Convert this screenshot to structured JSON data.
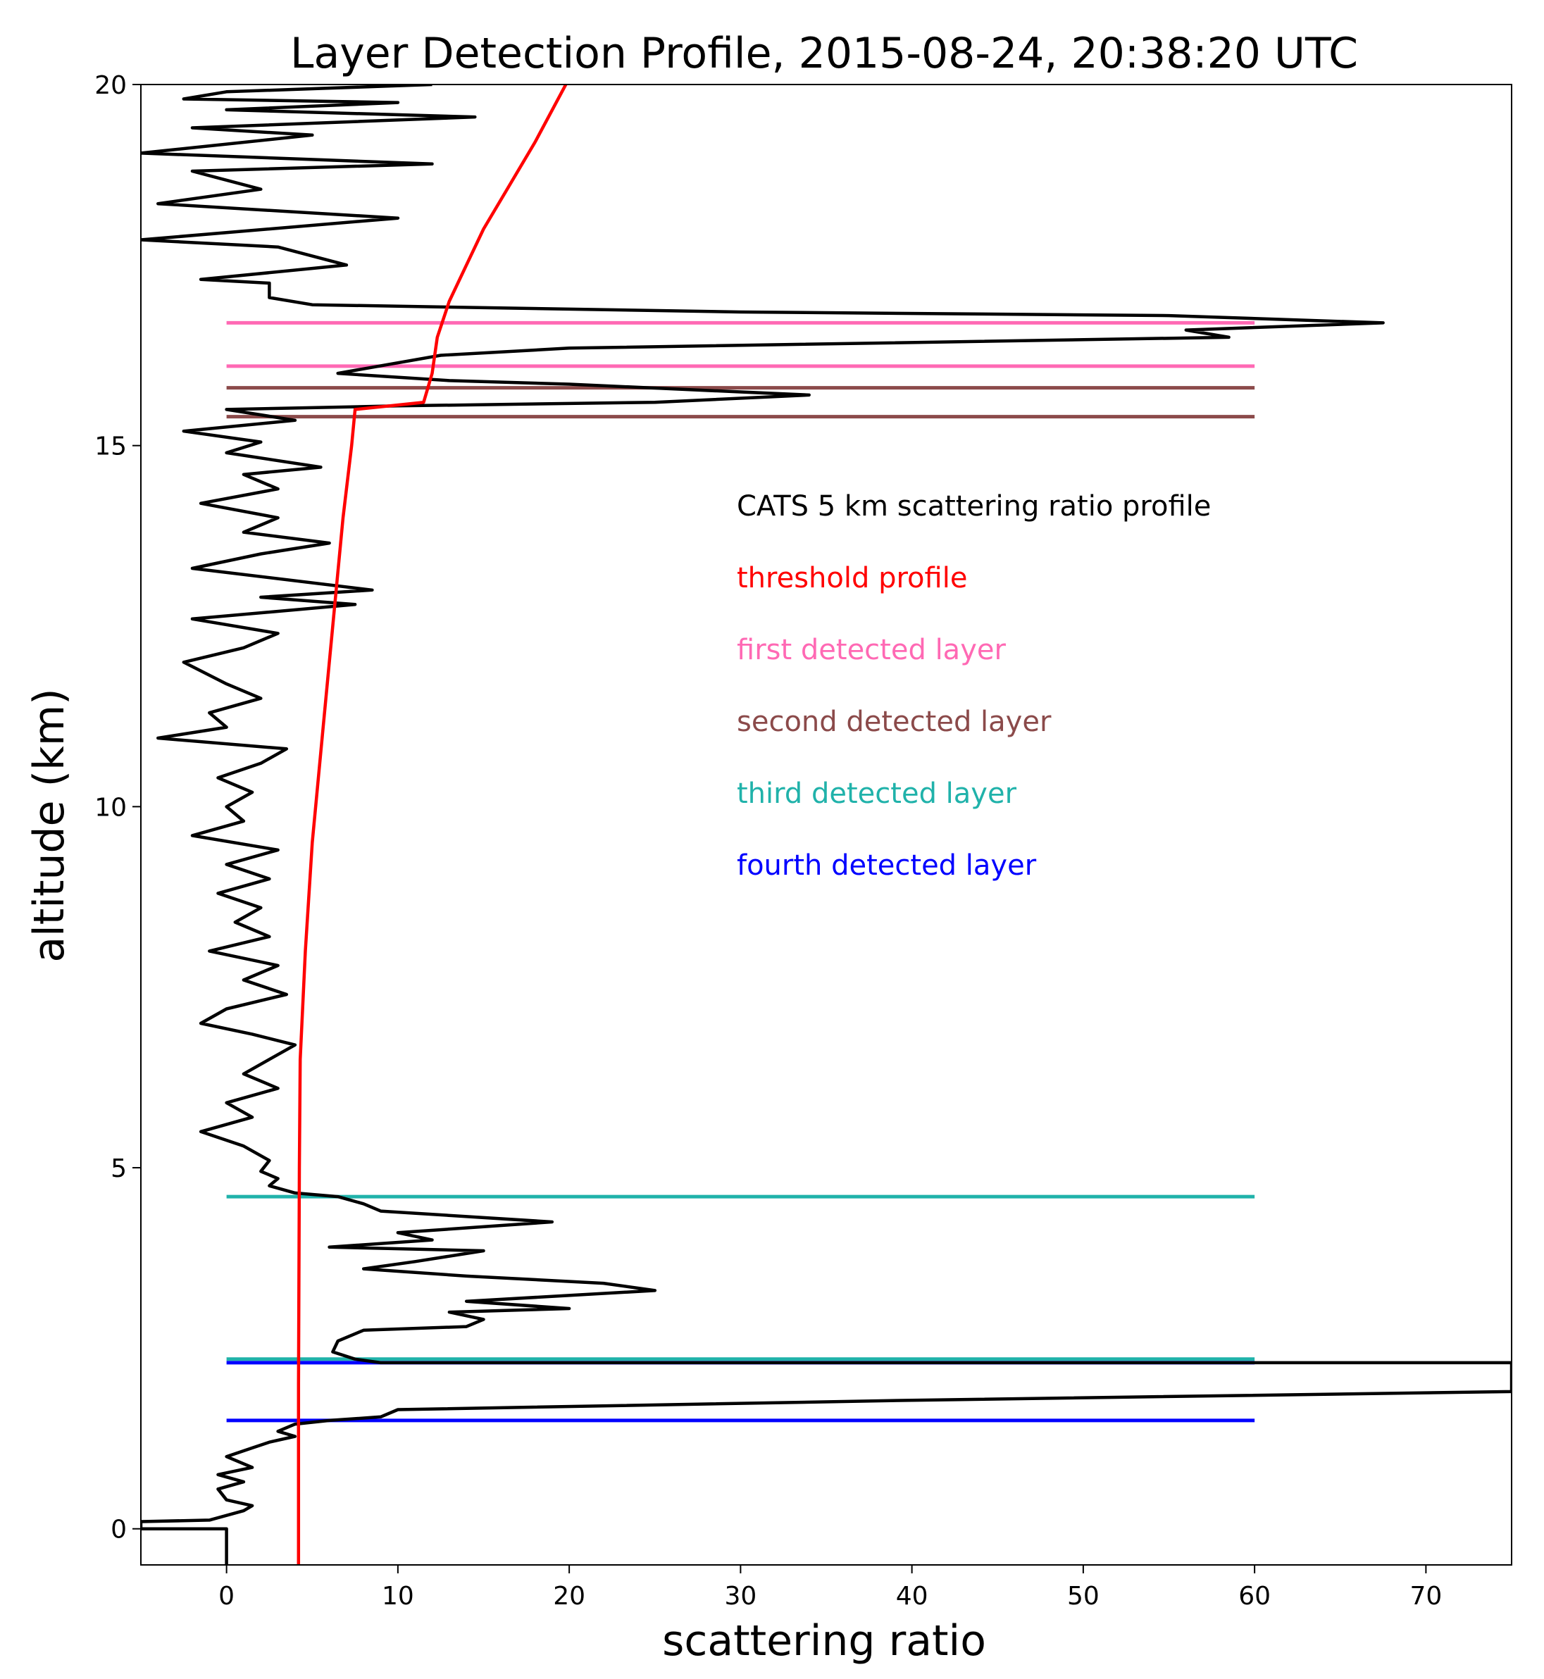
{
  "chart_data": {
    "type": "line",
    "title": "Layer Detection Profile, 2015-08-24, 20:38:20 UTC",
    "xlabel": "scattering ratio",
    "ylabel": "altitude (km)",
    "xlim": [
      -5,
      75
    ],
    "ylim": [
      -0.5,
      20
    ],
    "xticks": [
      0,
      10,
      20,
      30,
      40,
      50,
      60,
      70
    ],
    "yticks": [
      0,
      5,
      10,
      15,
      20
    ],
    "grid": false,
    "series": [
      {
        "name": "CATS 5 km scattering ratio profile",
        "color": "#000000",
        "points": [
          [
            0,
            -0.5
          ],
          [
            0,
            0
          ],
          [
            -5,
            0
          ],
          [
            -5,
            0.1
          ],
          [
            -1,
            0.12
          ],
          [
            1,
            0.25
          ],
          [
            1.5,
            0.32
          ],
          [
            0,
            0.4
          ],
          [
            -0.5,
            0.55
          ],
          [
            1,
            0.65
          ],
          [
            -0.5,
            0.75
          ],
          [
            1.5,
            0.85
          ],
          [
            0,
            1.0
          ],
          [
            1.5,
            1.12
          ],
          [
            2.5,
            1.2
          ],
          [
            4,
            1.28
          ],
          [
            3,
            1.35
          ],
          [
            4,
            1.45
          ],
          [
            6,
            1.5
          ],
          [
            9,
            1.55
          ],
          [
            10,
            1.65
          ],
          [
            40,
            1.78
          ],
          [
            75,
            1.9
          ],
          [
            75,
            2.3
          ],
          [
            9,
            2.3
          ],
          [
            7.5,
            2.35
          ],
          [
            6.2,
            2.45
          ],
          [
            6.5,
            2.6
          ],
          [
            8,
            2.75
          ],
          [
            14,
            2.8
          ],
          [
            15,
            2.9
          ],
          [
            13,
            3.0
          ],
          [
            20,
            3.05
          ],
          [
            14,
            3.15
          ],
          [
            25,
            3.3
          ],
          [
            22,
            3.4
          ],
          [
            14,
            3.5
          ],
          [
            8,
            3.6
          ],
          [
            11,
            3.7
          ],
          [
            15,
            3.85
          ],
          [
            6,
            3.9
          ],
          [
            12,
            4.0
          ],
          [
            10,
            4.1
          ],
          [
            19,
            4.25
          ],
          [
            9,
            4.4
          ],
          [
            8,
            4.5
          ],
          [
            6.5,
            4.6
          ],
          [
            4,
            4.65
          ],
          [
            2.5,
            4.75
          ],
          [
            3,
            4.85
          ],
          [
            2,
            4.95
          ],
          [
            2.5,
            5.1
          ],
          [
            1,
            5.3
          ],
          [
            -1.5,
            5.5
          ],
          [
            1.5,
            5.7
          ],
          [
            0,
            5.9
          ],
          [
            3,
            6.1
          ],
          [
            1,
            6.3
          ],
          [
            2.5,
            6.5
          ],
          [
            4,
            6.7
          ],
          [
            1.5,
            6.85
          ],
          [
            -1.5,
            7.0
          ],
          [
            0,
            7.2
          ],
          [
            3.5,
            7.4
          ],
          [
            1,
            7.6
          ],
          [
            3,
            7.8
          ],
          [
            -1,
            8.0
          ],
          [
            2.5,
            8.2
          ],
          [
            0.5,
            8.4
          ],
          [
            2,
            8.6
          ],
          [
            -0.5,
            8.8
          ],
          [
            2.5,
            9.0
          ],
          [
            0,
            9.2
          ],
          [
            3,
            9.4
          ],
          [
            -2,
            9.6
          ],
          [
            1,
            9.8
          ],
          [
            0,
            10.0
          ],
          [
            1.5,
            10.2
          ],
          [
            -0.5,
            10.4
          ],
          [
            2,
            10.6
          ],
          [
            3.5,
            10.8
          ],
          [
            -4,
            10.95
          ],
          [
            0,
            11.1
          ],
          [
            -1,
            11.3
          ],
          [
            2,
            11.5
          ],
          [
            0,
            11.7
          ],
          [
            -2.5,
            12.0
          ],
          [
            1,
            12.2
          ],
          [
            3,
            12.4
          ],
          [
            -2,
            12.6
          ],
          [
            7.5,
            12.8
          ],
          [
            2,
            12.9
          ],
          [
            8.5,
            13.0
          ],
          [
            -2,
            13.3
          ],
          [
            2,
            13.5
          ],
          [
            6,
            13.65
          ],
          [
            1,
            13.8
          ],
          [
            3,
            14.0
          ],
          [
            -1.5,
            14.2
          ],
          [
            3,
            14.4
          ],
          [
            1,
            14.6
          ],
          [
            5.5,
            14.7
          ],
          [
            0,
            14.9
          ],
          [
            2,
            15.05
          ],
          [
            -2.5,
            15.2
          ],
          [
            4,
            15.35
          ],
          [
            0,
            15.5
          ],
          [
            10,
            15.55
          ],
          [
            25,
            15.6
          ],
          [
            34,
            15.7
          ],
          [
            20,
            15.85
          ],
          [
            13,
            15.9
          ],
          [
            6.5,
            16.0
          ],
          [
            12.5,
            16.25
          ],
          [
            20,
            16.35
          ],
          [
            58.5,
            16.5
          ],
          [
            56,
            16.6
          ],
          [
            67.5,
            16.7
          ],
          [
            55,
            16.8
          ],
          [
            30,
            16.85
          ],
          [
            5,
            16.95
          ],
          [
            2.5,
            17.05
          ],
          [
            2.5,
            17.25
          ],
          [
            -1.5,
            17.3
          ],
          [
            7,
            17.5
          ],
          [
            3,
            17.75
          ],
          [
            -5,
            17.85
          ],
          [
            10,
            18.15
          ],
          [
            -4,
            18.35
          ],
          [
            2,
            18.55
          ],
          [
            -2,
            18.8
          ],
          [
            12,
            18.9
          ],
          [
            -5,
            19.05
          ],
          [
            5,
            19.3
          ],
          [
            -2,
            19.4
          ],
          [
            14.5,
            19.55
          ],
          [
            0,
            19.65
          ],
          [
            10,
            19.75
          ],
          [
            -2.5,
            19.8
          ],
          [
            0,
            19.9
          ],
          [
            12,
            20.0
          ]
        ]
      },
      {
        "name": "threshold profile",
        "color": "#ff0000",
        "points": [
          [
            4.2,
            -0.5
          ],
          [
            4.2,
            2.0
          ],
          [
            4.25,
            5.0
          ],
          [
            4.3,
            6.5
          ],
          [
            4.6,
            8.0
          ],
          [
            5.0,
            9.5
          ],
          [
            5.6,
            11.0
          ],
          [
            6.2,
            12.5
          ],
          [
            6.8,
            14.0
          ],
          [
            7.3,
            15.0
          ],
          [
            7.5,
            15.5
          ],
          [
            11.5,
            15.6
          ],
          [
            12.0,
            16.0
          ],
          [
            12.3,
            16.5
          ],
          [
            13.0,
            17.0
          ],
          [
            14.0,
            17.5
          ],
          [
            15.0,
            18.0
          ],
          [
            16.5,
            18.6
          ],
          [
            18.0,
            19.2
          ],
          [
            19.8,
            20.0
          ]
        ]
      }
    ],
    "layers": [
      {
        "name": "first detected layer",
        "color": "#ff69b4",
        "x_range": [
          0,
          60
        ],
        "altitudes": [
          16.7,
          16.1
        ]
      },
      {
        "name": "second detected layer",
        "color": "#8b4a4a",
        "x_range": [
          0,
          60
        ],
        "altitudes": [
          15.8,
          15.4
        ]
      },
      {
        "name": "third detected layer",
        "color": "#20b2aa",
        "x_range": [
          0,
          60
        ],
        "altitudes": [
          4.6,
          2.35
        ]
      },
      {
        "name": "fourth detected layer",
        "color": "#0000ff",
        "x_range": [
          0,
          60
        ],
        "altitudes": [
          2.3,
          1.5
        ]
      }
    ],
    "legend": {
      "placement": "center-right",
      "entries": [
        {
          "label": "CATS 5 km scattering ratio profile",
          "color": "#000000"
        },
        {
          "label": "threshold profile",
          "color": "#ff0000"
        },
        {
          "label": "first detected layer",
          "color": "#ff69b4"
        },
        {
          "label": "second detected layer",
          "color": "#8b4a4a"
        },
        {
          "label": "third detected layer",
          "color": "#20b2aa"
        },
        {
          "label": "fourth detected layer",
          "color": "#0000ff"
        }
      ]
    }
  }
}
